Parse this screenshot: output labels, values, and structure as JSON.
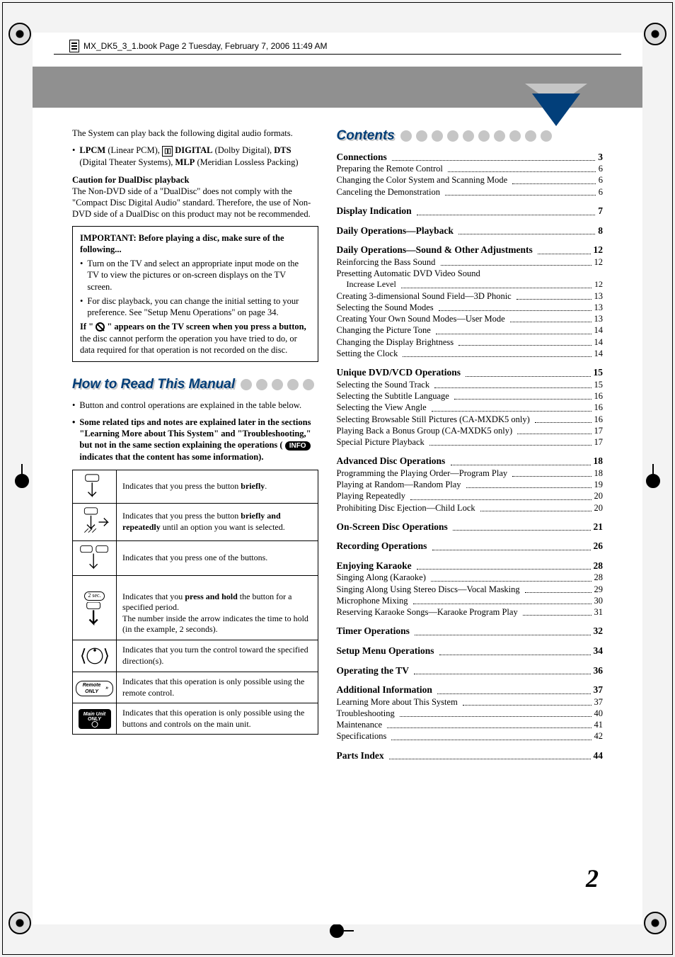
{
  "bookline": "MX_DK5_3_1.book  Page 2  Tuesday, February 7, 2006  11:49 AM",
  "left": {
    "intro": "The System can play back the following digital audio formats.",
    "formats_line_parts": {
      "lpcm": "LPCM",
      "lpcm_paren": " (Linear PCM), ",
      "dolby_badge": "▯▯",
      "digital": " DIGITAL",
      "digital_paren": " (Dolby Digital), ",
      "dts": "DTS",
      "dts_paren": " (Digital Theater Systems), ",
      "mlp": "MLP",
      "mlp_paren": " (Meridian Lossless Packing)"
    },
    "caution_head": "Caution for DualDisc playback",
    "caution_body": "The Non-DVD side of a \"DualDisc\" does not comply with the \"Compact Disc Digital Audio\" standard. Therefore, the use of Non-DVD side of a DualDisc on this product may not be recommended.",
    "box": {
      "head": "IMPORTANT: Before playing a disc, make sure of the following...",
      "b1": "Turn on the TV and select an appropriate input mode on the TV to view the pictures or on-screen displays on the TV screen.",
      "b2": "For disc playback, you can change the initial setting to your preference. See \"Setup Menu Operations\" on page 34.",
      "if_pre": "If \" ",
      "if_post": " \" appears on the TV screen when you press a button,",
      "if_tail": " the disc cannot perform the operation you have tried to do, or data required for that operation is not recorded on the disc."
    },
    "how_title": "How to Read This Manual",
    "how_b1": "Button and control operations are explained in the table below.",
    "how_b2_pre": "Some related tips and notes are explained later in the sections \"Learning More about This System\" and \"Troubleshooting,\" but not in the same section explaining the operations ( ",
    "how_b2_badge": "INFO",
    "how_b2_post": "  indicates that the content has some information).",
    "table": {
      "r1": "Indicates that you press the button briefly.",
      "r1_bold": "briefly",
      "r2_pre": "Indicates that you press the button ",
      "r2_bold": "briefly and repeatedly",
      "r2_post": " until an option you want is selected.",
      "r3": "Indicates that you press one of the buttons.",
      "r4_pre": "Indicates that you ",
      "r4_bold": "press and hold",
      "r4_post": " the button for a specified period.\nThe number inside the arrow indicates the time to hold (in the example, 2 seconds).",
      "r4_badge": "2 sec.",
      "r5": "Indicates that you turn the control toward the specified direction(s).",
      "r6": "Indicates that this operation is only possible using the remote control.",
      "r6_badge": "Remote ONLY",
      "r7": "Indicates that this operation is only possible using the buttons and controls on the main unit.",
      "r7_badge": "Main Unit ONLY"
    }
  },
  "contents_title": "Contents",
  "toc": [
    {
      "head": "Connections",
      "page": "3",
      "subs": [
        {
          "label": "Preparing the Remote Control",
          "page": "6"
        },
        {
          "label": "Changing the Color System and Scanning Mode",
          "page": "6"
        },
        {
          "label": "Canceling the Demonstration",
          "page": "6"
        }
      ]
    },
    {
      "head": "Display Indication",
      "page": "7",
      "subs": []
    },
    {
      "head": "Daily Operations—Playback",
      "page": "8",
      "subs": []
    },
    {
      "head": "Daily Operations—Sound & Other Adjustments",
      "page": "12",
      "subs": [
        {
          "label": "Reinforcing the Bass Sound",
          "page": "12"
        },
        {
          "label": "Presetting Automatic DVD Video Sound",
          "page": ""
        },
        {
          "label": "Increase Level",
          "page": "12",
          "indent": true
        },
        {
          "label": "Creating 3-dimensional Sound Field—3D Phonic",
          "page": "13"
        },
        {
          "label": "Selecting the Sound Modes",
          "page": "13"
        },
        {
          "label": "Creating Your Own Sound Modes—User Mode",
          "page": "13"
        },
        {
          "label": "Changing the Picture Tone",
          "page": "14"
        },
        {
          "label": "Changing the Display Brightness",
          "page": "14"
        },
        {
          "label": "Setting the Clock",
          "page": "14"
        }
      ]
    },
    {
      "head": "Unique DVD/VCD Operations",
      "page": "15",
      "subs": [
        {
          "label": "Selecting the Sound Track",
          "page": "15"
        },
        {
          "label": "Selecting the Subtitle Language",
          "page": "16"
        },
        {
          "label": "Selecting the View Angle",
          "page": "16"
        },
        {
          "label": "Selecting Browsable Still Pictures (CA-MXDK5 only)",
          "page": "16"
        },
        {
          "label": "Playing Back a Bonus Group (CA-MXDK5 only)",
          "page": "17"
        },
        {
          "label": "Special Picture Playback",
          "page": "17"
        }
      ]
    },
    {
      "head": "Advanced Disc Operations",
      "page": "18",
      "subs": [
        {
          "label": "Programming the Playing Order—Program Play",
          "page": "18"
        },
        {
          "label": "Playing at Random—Random Play",
          "page": "19"
        },
        {
          "label": "Playing Repeatedly",
          "page": "20"
        },
        {
          "label": "Prohibiting Disc Ejection—Child Lock",
          "page": "20"
        }
      ]
    },
    {
      "head": "On-Screen Disc Operations",
      "page": "21",
      "subs": []
    },
    {
      "head": "Recording Operations",
      "page": "26",
      "subs": []
    },
    {
      "head": "Enjoying Karaoke",
      "page": "28",
      "subs": [
        {
          "label": "Singing Along (Karaoke)",
          "page": "28"
        },
        {
          "label": "Singing Along Using Stereo Discs—Vocal Masking",
          "page": "29"
        },
        {
          "label": "Microphone Mixing",
          "page": "30"
        },
        {
          "label": "Reserving Karaoke Songs—Karaoke Program Play",
          "page": "31"
        }
      ]
    },
    {
      "head": "Timer Operations",
      "page": "32",
      "subs": []
    },
    {
      "head": "Setup Menu Operations",
      "page": "34",
      "subs": []
    },
    {
      "head": "Operating the TV",
      "page": "36",
      "subs": []
    },
    {
      "head": "Additional Information",
      "page": "37",
      "subs": [
        {
          "label": "Learning More about This System",
          "page": "37"
        },
        {
          "label": "Troubleshooting",
          "page": "40"
        },
        {
          "label": "Maintenance",
          "page": "41"
        },
        {
          "label": "Specifications",
          "page": "42"
        }
      ]
    },
    {
      "head": "Parts Index",
      "page": "44",
      "subs": []
    }
  ],
  "page_number": "2",
  "style": {
    "accent": "#013d77",
    "band": "#909090",
    "dot": "#c6c6c6",
    "shadow": "#c8c8c8",
    "bg": "#f3f3f3",
    "page_bg": "#ffffff",
    "section_title_fontsize": 19,
    "body_fontsize": 12.5,
    "toc_head_fontsize": 13.5
  }
}
